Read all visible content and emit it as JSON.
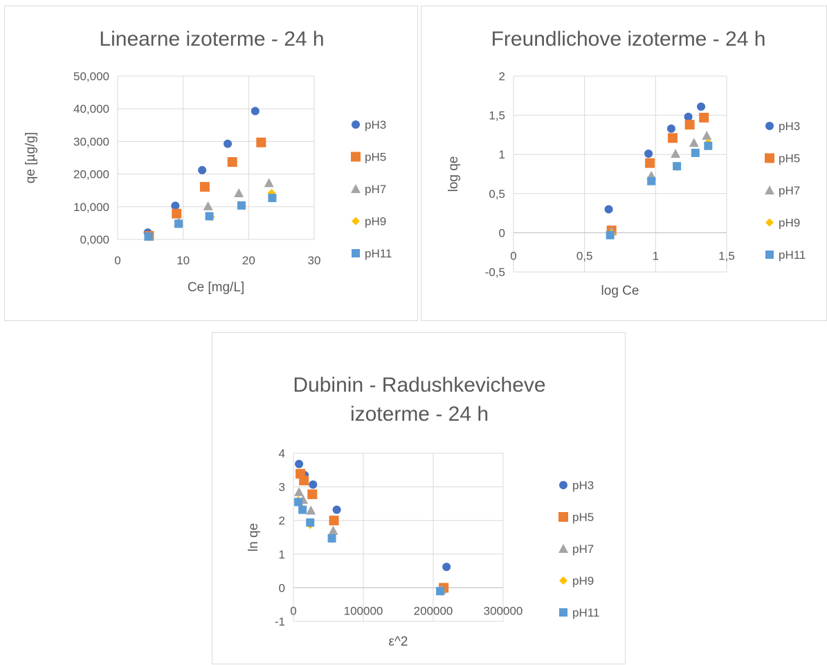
{
  "chart_data": [
    {
      "type": "scatter",
      "title": "Linearne izoterme - 24 h",
      "xlabel": "Ce [mg/L]",
      "ylabel": "qe [µg/g]",
      "xlim": [
        0,
        30
      ],
      "ylim": [
        0,
        50000
      ],
      "xticks": [
        0,
        10,
        20,
        30
      ],
      "xtick_labels": [
        "0",
        "10",
        "20",
        "30"
      ],
      "yticks": [
        0,
        10000,
        20000,
        30000,
        40000,
        50000
      ],
      "ytick_labels": [
        "0,000",
        "10,000",
        "20,000",
        "30,000",
        "40,000",
        "50,000"
      ],
      "grid": true,
      "legend_position": "right",
      "series": [
        {
          "name": "pH3",
          "marker": "circle",
          "color": "#4472c4",
          "points": [
            [
              4.6,
              2100
            ],
            [
              8.8,
              10300
            ],
            [
              12.9,
              21200
            ],
            [
              16.8,
              29300
            ],
            [
              21.0,
              39300
            ]
          ]
        },
        {
          "name": "pH5",
          "marker": "square",
          "color": "#ed7d31",
          "points": [
            [
              4.8,
              1100
            ],
            [
              9.0,
              7900
            ],
            [
              13.3,
              16100
            ],
            [
              17.5,
              23700
            ],
            [
              21.9,
              29700
            ]
          ]
        },
        {
          "name": "pH7",
          "marker": "triangle",
          "color": "#a5a5a5",
          "points": [
            [
              4.8,
              1000
            ],
            [
              9.3,
              5300
            ],
            [
              13.8,
              10200
            ],
            [
              18.5,
              14200
            ],
            [
              23.1,
              17300
            ]
          ]
        },
        {
          "name": "pH9",
          "marker": "diamond",
          "color": "#ffc000",
          "points": [
            [
              4.8,
              900
            ],
            [
              9.4,
              4700
            ],
            [
              14.2,
              6900
            ],
            [
              19.0,
              10400
            ],
            [
              23.5,
              14200
            ]
          ]
        },
        {
          "name": "pH11",
          "marker": "square-small",
          "color": "#5b9bd5",
          "points": [
            [
              4.7,
              900
            ],
            [
              9.3,
              4800
            ],
            [
              14.0,
              7100
            ],
            [
              18.9,
              10400
            ],
            [
              23.6,
              12700
            ]
          ]
        }
      ]
    },
    {
      "type": "scatter",
      "title": "Freundlichove izoterme - 24 h",
      "xlabel": "log Ce",
      "ylabel": "log qe",
      "xlim": [
        0,
        1.5
      ],
      "ylim": [
        -0.5,
        2
      ],
      "xticks": [
        0,
        0.5,
        1,
        1.5
      ],
      "xtick_labels": [
        "0",
        "0,5",
        "1",
        "1,5"
      ],
      "yticks": [
        -0.5,
        0,
        0.5,
        1,
        1.5,
        2
      ],
      "ytick_labels": [
        "-0,5",
        "0",
        "0,5",
        "1",
        "1,5",
        "2"
      ],
      "grid": true,
      "legend_position": "right",
      "series": [
        {
          "name": "pH3",
          "marker": "circle",
          "color": "#4472c4",
          "points": [
            [
              0.67,
              0.3
            ],
            [
              0.95,
              1.01
            ],
            [
              1.11,
              1.33
            ],
            [
              1.23,
              1.48
            ],
            [
              1.32,
              1.61
            ]
          ]
        },
        {
          "name": "pH5",
          "marker": "square",
          "color": "#ed7d31",
          "points": [
            [
              0.69,
              0.03
            ],
            [
              0.96,
              0.89
            ],
            [
              1.12,
              1.21
            ],
            [
              1.24,
              1.38
            ],
            [
              1.34,
              1.47
            ]
          ]
        },
        {
          "name": "pH7",
          "marker": "triangle",
          "color": "#a5a5a5",
          "points": [
            [
              0.69,
              0.02
            ],
            [
              0.97,
              0.73
            ],
            [
              1.14,
              1.01
            ],
            [
              1.27,
              1.15
            ],
            [
              1.36,
              1.24
            ]
          ]
        },
        {
          "name": "pH9",
          "marker": "diamond",
          "color": "#ffc000",
          "points": [
            [
              0.69,
              -0.01
            ],
            [
              0.97,
              0.67
            ],
            [
              1.15,
              0.84
            ],
            [
              1.28,
              1.02
            ],
            [
              1.37,
              1.15
            ]
          ]
        },
        {
          "name": "pH11",
          "marker": "square-small",
          "color": "#5b9bd5",
          "points": [
            [
              0.68,
              -0.03
            ],
            [
              0.97,
              0.66
            ],
            [
              1.15,
              0.85
            ],
            [
              1.28,
              1.02
            ],
            [
              1.37,
              1.11
            ]
          ]
        }
      ]
    },
    {
      "type": "scatter",
      "title": "Dubinin - Radushkevicheve izoterme - 24 h",
      "title_lines": [
        "Dubinin - Radushkevicheve",
        "izoterme - 24 h"
      ],
      "xlabel": "ε^2",
      "ylabel": "ln qe",
      "xlim": [
        0,
        300000
      ],
      "ylim": [
        -1,
        4
      ],
      "xticks": [
        0,
        100000,
        200000,
        300000
      ],
      "xtick_labels": [
        "0",
        "100000",
        "200000",
        "300000"
      ],
      "yticks": [
        -1,
        0,
        1,
        2,
        3,
        4
      ],
      "ytick_labels": [
        "-1",
        "0",
        "1",
        "2",
        "3",
        "4"
      ],
      "grid": true,
      "legend_position": "right",
      "series": [
        {
          "name": "pH3",
          "marker": "circle",
          "color": "#4472c4",
          "points": [
            [
              8000,
              3.68
            ],
            [
              16000,
              3.35
            ],
            [
              28000,
              3.07
            ],
            [
              62000,
              2.32
            ],
            [
              219000,
              0.62
            ]
          ]
        },
        {
          "name": "pH5",
          "marker": "square",
          "color": "#ed7d31",
          "points": [
            [
              10000,
              3.39
            ],
            [
              15000,
              3.19
            ],
            [
              27000,
              2.78
            ],
            [
              58000,
              2.0
            ],
            [
              215000,
              0.0
            ]
          ]
        },
        {
          "name": "pH7",
          "marker": "triangle",
          "color": "#a5a5a5",
          "points": [
            [
              8000,
              2.85
            ],
            [
              14000,
              2.62
            ],
            [
              25000,
              2.3
            ],
            [
              57000,
              1.7
            ],
            [
              212000,
              -0.05
            ]
          ]
        },
        {
          "name": "pH9",
          "marker": "diamond",
          "color": "#ffc000",
          "points": [
            [
              7000,
              2.6
            ],
            [
              13000,
              2.35
            ],
            [
              24000,
              1.87
            ],
            [
              55000,
              1.45
            ],
            [
              211000,
              -0.1
            ]
          ]
        },
        {
          "name": "pH11",
          "marker": "square-small",
          "color": "#5b9bd5",
          "points": [
            [
              7000,
              2.55
            ],
            [
              13000,
              2.32
            ],
            [
              24000,
              1.94
            ],
            [
              55000,
              1.47
            ],
            [
              210000,
              -0.1
            ]
          ]
        }
      ]
    }
  ]
}
